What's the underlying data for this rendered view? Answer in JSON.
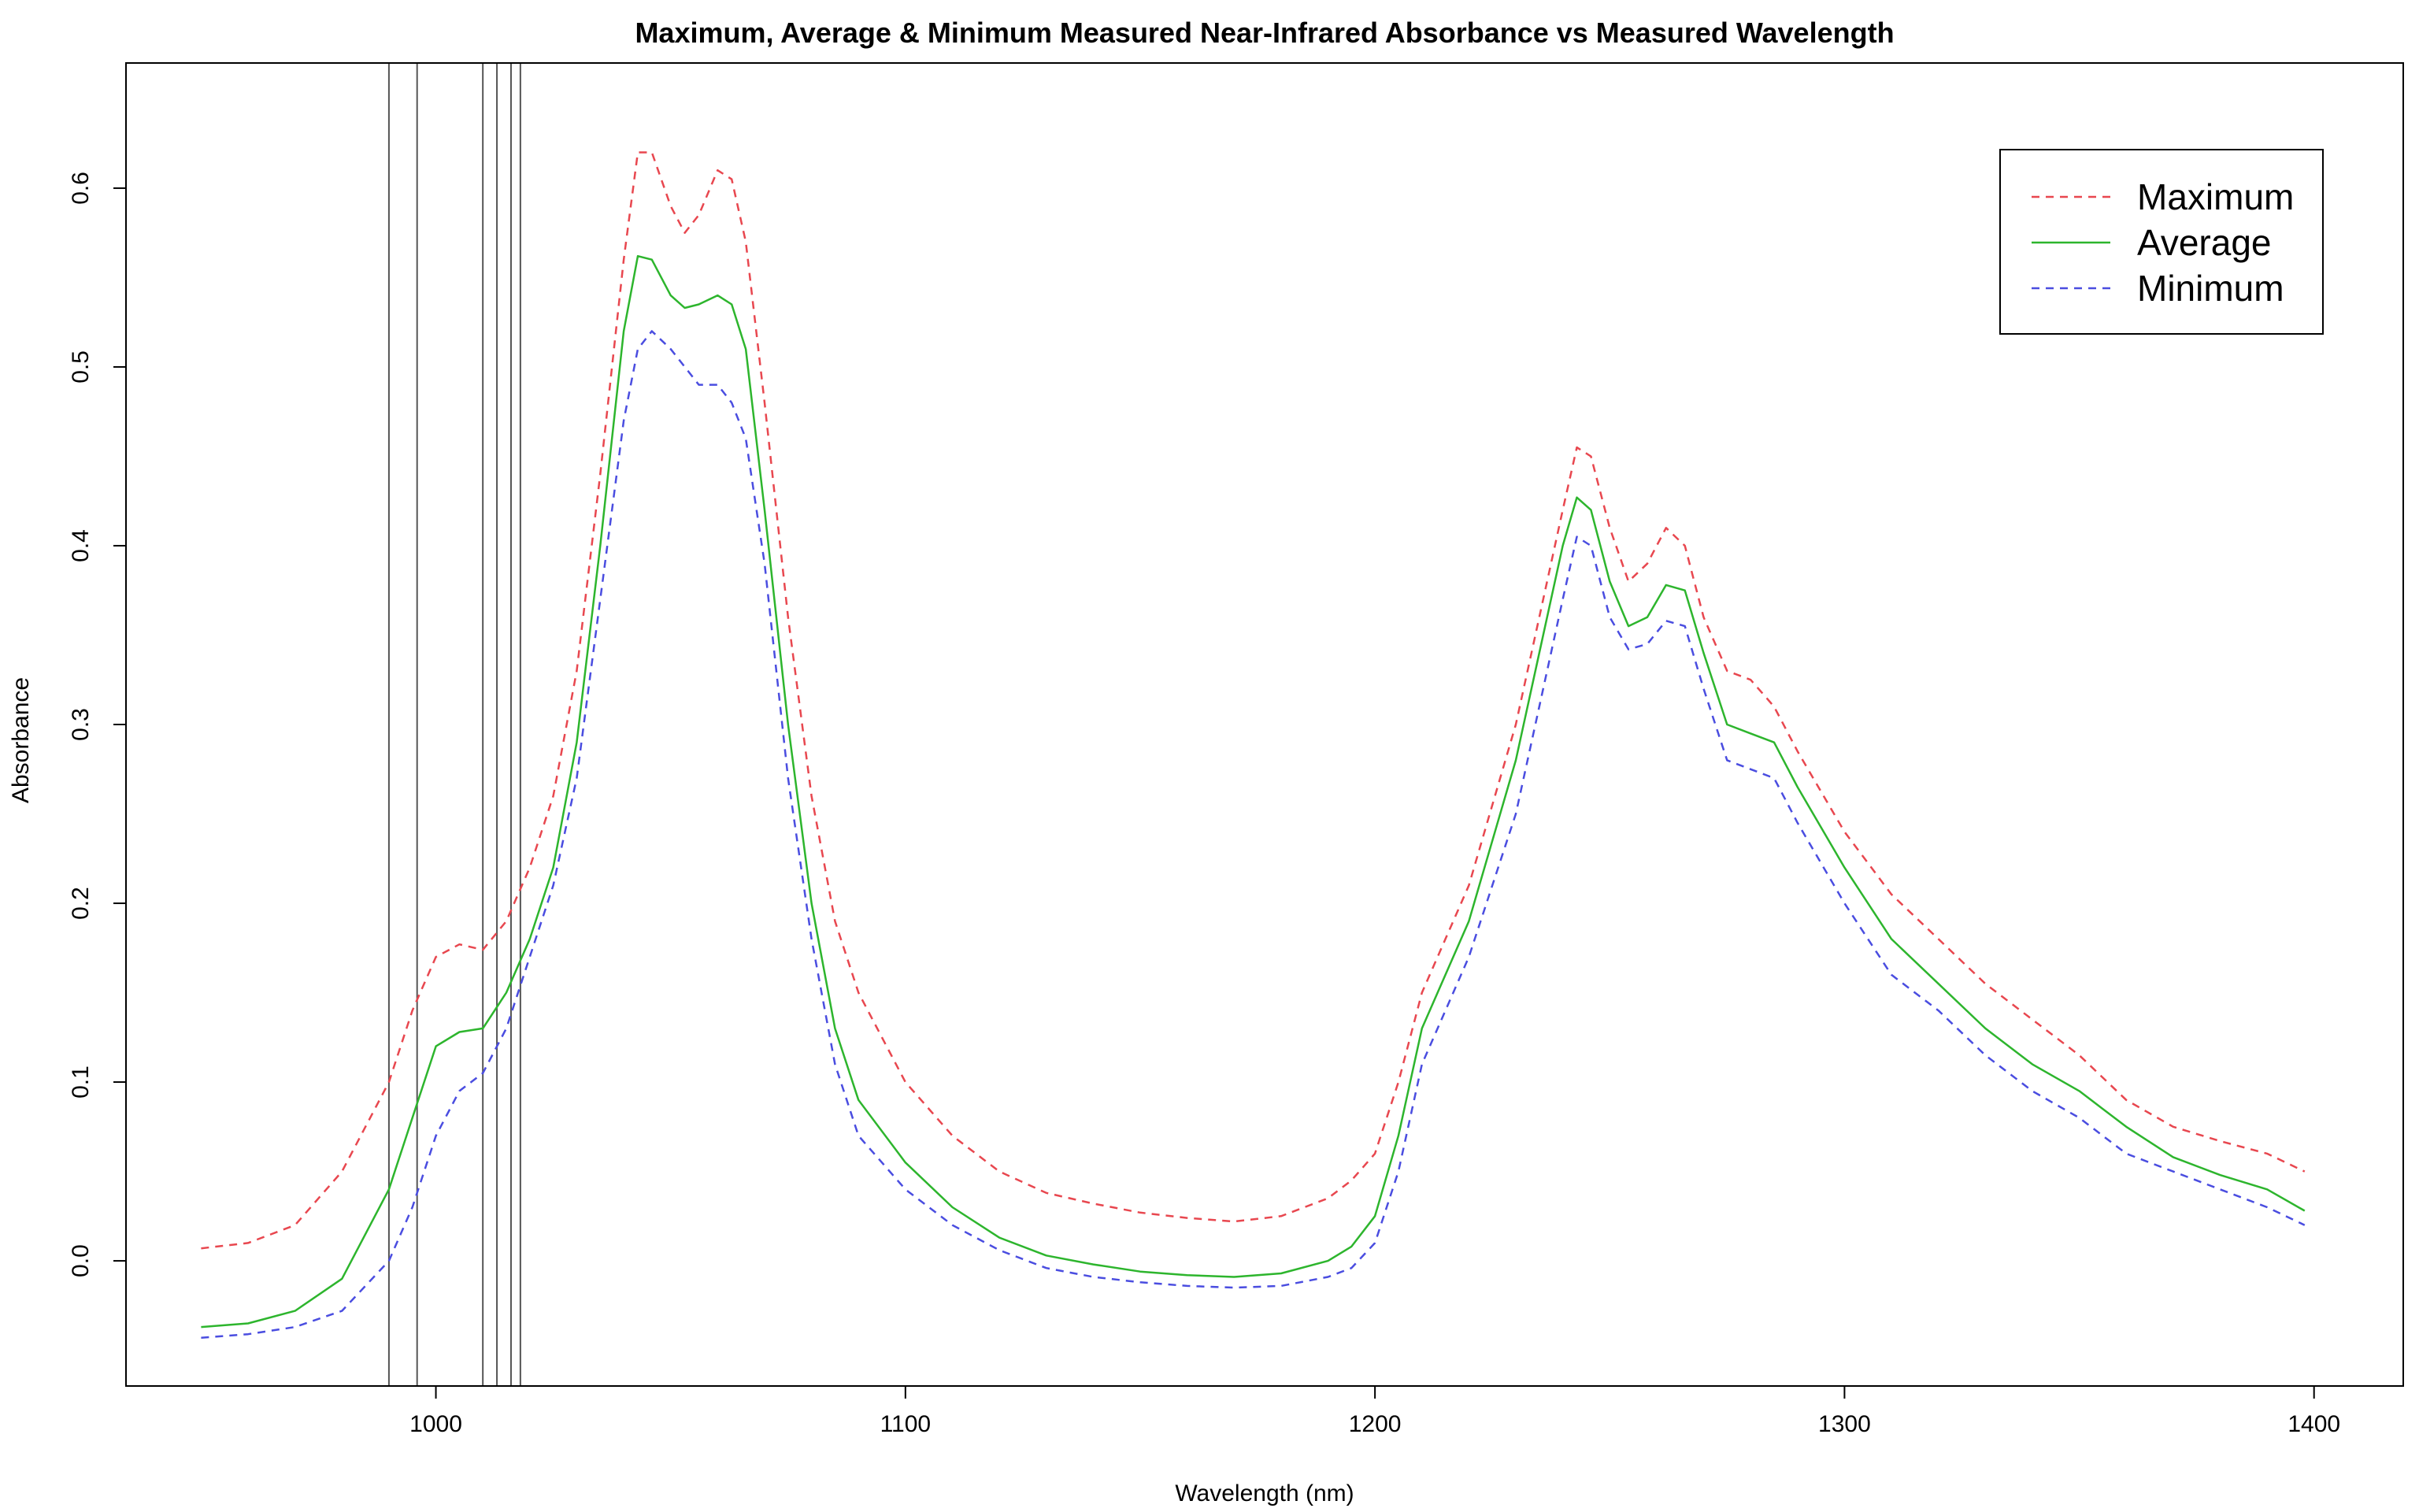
{
  "chart_data": {
    "type": "line",
    "title": "Maximum, Average & Minimum Measured Near-Infrared Absorbance vs Measured Wavelength",
    "xlabel": "Wavelength (nm)",
    "ylabel": "Absorbance",
    "xlim": [
      934,
      1419
    ],
    "ylim": [
      -0.07,
      0.67
    ],
    "xticks": [
      1000,
      1100,
      1200,
      1300,
      1400
    ],
    "xtick_labels": [
      "1000",
      "1100",
      "1200",
      "1300",
      "1400"
    ],
    "yticks": [
      0.0,
      0.1,
      0.2,
      0.3,
      0.4,
      0.5,
      0.6
    ],
    "ytick_labels": [
      "0.0",
      "0.1",
      "0.2",
      "0.3",
      "0.4",
      "0.5",
      "0.6"
    ],
    "grid": false,
    "legend_position": "top-right",
    "vertical_lines": [
      990,
      996,
      1010,
      1013,
      1016,
      1018
    ],
    "vertical_line_color": "#555555",
    "x": [
      950,
      960,
      970,
      980,
      990,
      995,
      1000,
      1005,
      1010,
      1015,
      1020,
      1025,
      1030,
      1035,
      1040,
      1043,
      1046,
      1050,
      1053,
      1056,
      1060,
      1063,
      1066,
      1070,
      1075,
      1080,
      1085,
      1090,
      1100,
      1110,
      1120,
      1130,
      1140,
      1150,
      1160,
      1170,
      1180,
      1190,
      1195,
      1200,
      1205,
      1210,
      1220,
      1230,
      1235,
      1240,
      1243,
      1246,
      1250,
      1254,
      1258,
      1262,
      1266,
      1270,
      1275,
      1280,
      1285,
      1290,
      1300,
      1310,
      1320,
      1330,
      1340,
      1350,
      1360,
      1370,
      1380,
      1390,
      1398
    ],
    "series": [
      {
        "name": "Maximum",
        "color": "#e8474f",
        "style": "dashed",
        "values": [
          0.007,
          0.01,
          0.02,
          0.05,
          0.1,
          0.14,
          0.17,
          0.177,
          0.174,
          0.19,
          0.22,
          0.26,
          0.33,
          0.44,
          0.56,
          0.62,
          0.62,
          0.59,
          0.575,
          0.585,
          0.61,
          0.605,
          0.57,
          0.48,
          0.36,
          0.26,
          0.19,
          0.15,
          0.1,
          0.07,
          0.05,
          0.038,
          0.032,
          0.027,
          0.024,
          0.022,
          0.025,
          0.035,
          0.045,
          0.06,
          0.1,
          0.15,
          0.21,
          0.3,
          0.36,
          0.42,
          0.455,
          0.45,
          0.41,
          0.38,
          0.39,
          0.41,
          0.4,
          0.36,
          0.33,
          0.325,
          0.31,
          0.285,
          0.24,
          0.205,
          0.18,
          0.155,
          0.135,
          0.115,
          0.09,
          0.075,
          0.067,
          0.06,
          0.05
        ]
      },
      {
        "name": "Average",
        "color": "#2db52d",
        "style": "solid",
        "values": [
          -0.037,
          -0.035,
          -0.028,
          -0.01,
          0.04,
          0.08,
          0.12,
          0.128,
          0.13,
          0.15,
          0.18,
          0.22,
          0.29,
          0.4,
          0.52,
          0.562,
          0.56,
          0.54,
          0.533,
          0.535,
          0.54,
          0.535,
          0.51,
          0.42,
          0.3,
          0.2,
          0.13,
          0.09,
          0.055,
          0.03,
          0.013,
          0.003,
          -0.002,
          -0.006,
          -0.008,
          -0.009,
          -0.007,
          0.0,
          0.008,
          0.025,
          0.07,
          0.13,
          0.19,
          0.28,
          0.34,
          0.4,
          0.427,
          0.42,
          0.38,
          0.355,
          0.36,
          0.378,
          0.375,
          0.34,
          0.3,
          0.295,
          0.29,
          0.265,
          0.22,
          0.18,
          0.155,
          0.13,
          0.11,
          0.095,
          0.075,
          0.058,
          0.048,
          0.04,
          0.028
        ]
      },
      {
        "name": "Minimum",
        "color": "#4a4de0",
        "style": "dashed",
        "values": [
          -0.043,
          -0.041,
          -0.037,
          -0.028,
          0.0,
          0.03,
          0.07,
          0.095,
          0.105,
          0.13,
          0.17,
          0.21,
          0.27,
          0.37,
          0.47,
          0.51,
          0.52,
          0.51,
          0.5,
          0.49,
          0.49,
          0.48,
          0.46,
          0.39,
          0.27,
          0.18,
          0.11,
          0.07,
          0.04,
          0.02,
          0.006,
          -0.004,
          -0.009,
          -0.012,
          -0.014,
          -0.015,
          -0.014,
          -0.009,
          -0.004,
          0.01,
          0.05,
          0.11,
          0.17,
          0.25,
          0.31,
          0.37,
          0.405,
          0.4,
          0.36,
          0.342,
          0.345,
          0.358,
          0.355,
          0.32,
          0.28,
          0.275,
          0.27,
          0.245,
          0.2,
          0.16,
          0.14,
          0.115,
          0.095,
          0.08,
          0.06,
          0.05,
          0.04,
          0.03,
          0.02
        ]
      }
    ]
  }
}
